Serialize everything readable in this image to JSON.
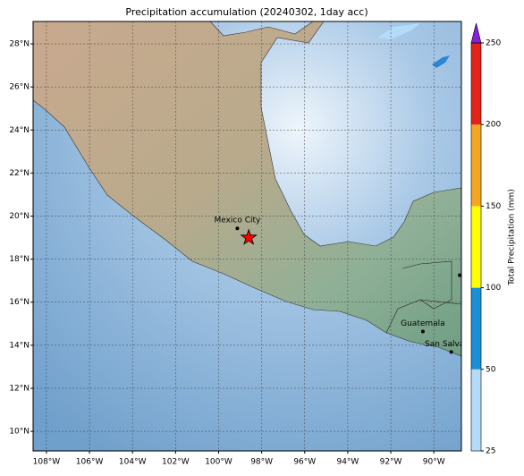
{
  "map": {
    "title": "Precipitation accumulation (20240302, 1day acc)",
    "xlim": [
      -108.62,
      -88.72
    ],
    "ylim": [
      9.09,
      29.04
    ],
    "xticks": [
      {
        "value": -108,
        "label": "108°W"
      },
      {
        "value": -106,
        "label": "106°W"
      },
      {
        "value": -104,
        "label": "104°W"
      },
      {
        "value": -102,
        "label": "102°W"
      },
      {
        "value": -100,
        "label": "100°W"
      },
      {
        "value": -98,
        "label": "98°W"
      },
      {
        "value": -96,
        "label": "96°W"
      },
      {
        "value": -94,
        "label": "94°W"
      },
      {
        "value": -92,
        "label": "92°W"
      },
      {
        "value": -90,
        "label": "90°W"
      }
    ],
    "yticks": [
      {
        "value": 10,
        "label": "10°N"
      },
      {
        "value": 12,
        "label": "12°N"
      },
      {
        "value": 14,
        "label": "14°N"
      },
      {
        "value": 16,
        "label": "16°N"
      },
      {
        "value": 18,
        "label": "18°N"
      },
      {
        "value": 20,
        "label": "20°N"
      },
      {
        "value": 22,
        "label": "22°N"
      },
      {
        "value": 24,
        "label": "24°N"
      },
      {
        "value": 26,
        "label": "26°N"
      },
      {
        "value": 28,
        "label": "28°N"
      }
    ],
    "grid": true,
    "cities": [
      {
        "name": "Mexico City",
        "lon": -99.13,
        "lat": 19.43
      },
      {
        "name": "Guatemala",
        "lon": -90.51,
        "lat": 14.64
      },
      {
        "name": "San Salvador",
        "lon": -89.19,
        "lat": 13.69
      }
    ],
    "points": [
      {
        "lon": -88.8,
        "lat": 17.25
      }
    ],
    "event": {
      "lon": -98.6,
      "lat": 19.0,
      "color": "#ff0000"
    },
    "colorbar": {
      "label": "Total Precipitation (mm)",
      "levels": [
        25,
        50,
        100,
        150,
        200,
        250
      ],
      "colors": [
        "#b4dcfa",
        "#1b8fd8",
        "#ffff00",
        "#f5a623",
        "#e2231a"
      ],
      "extend_color": "#8a1fd6"
    }
  }
}
